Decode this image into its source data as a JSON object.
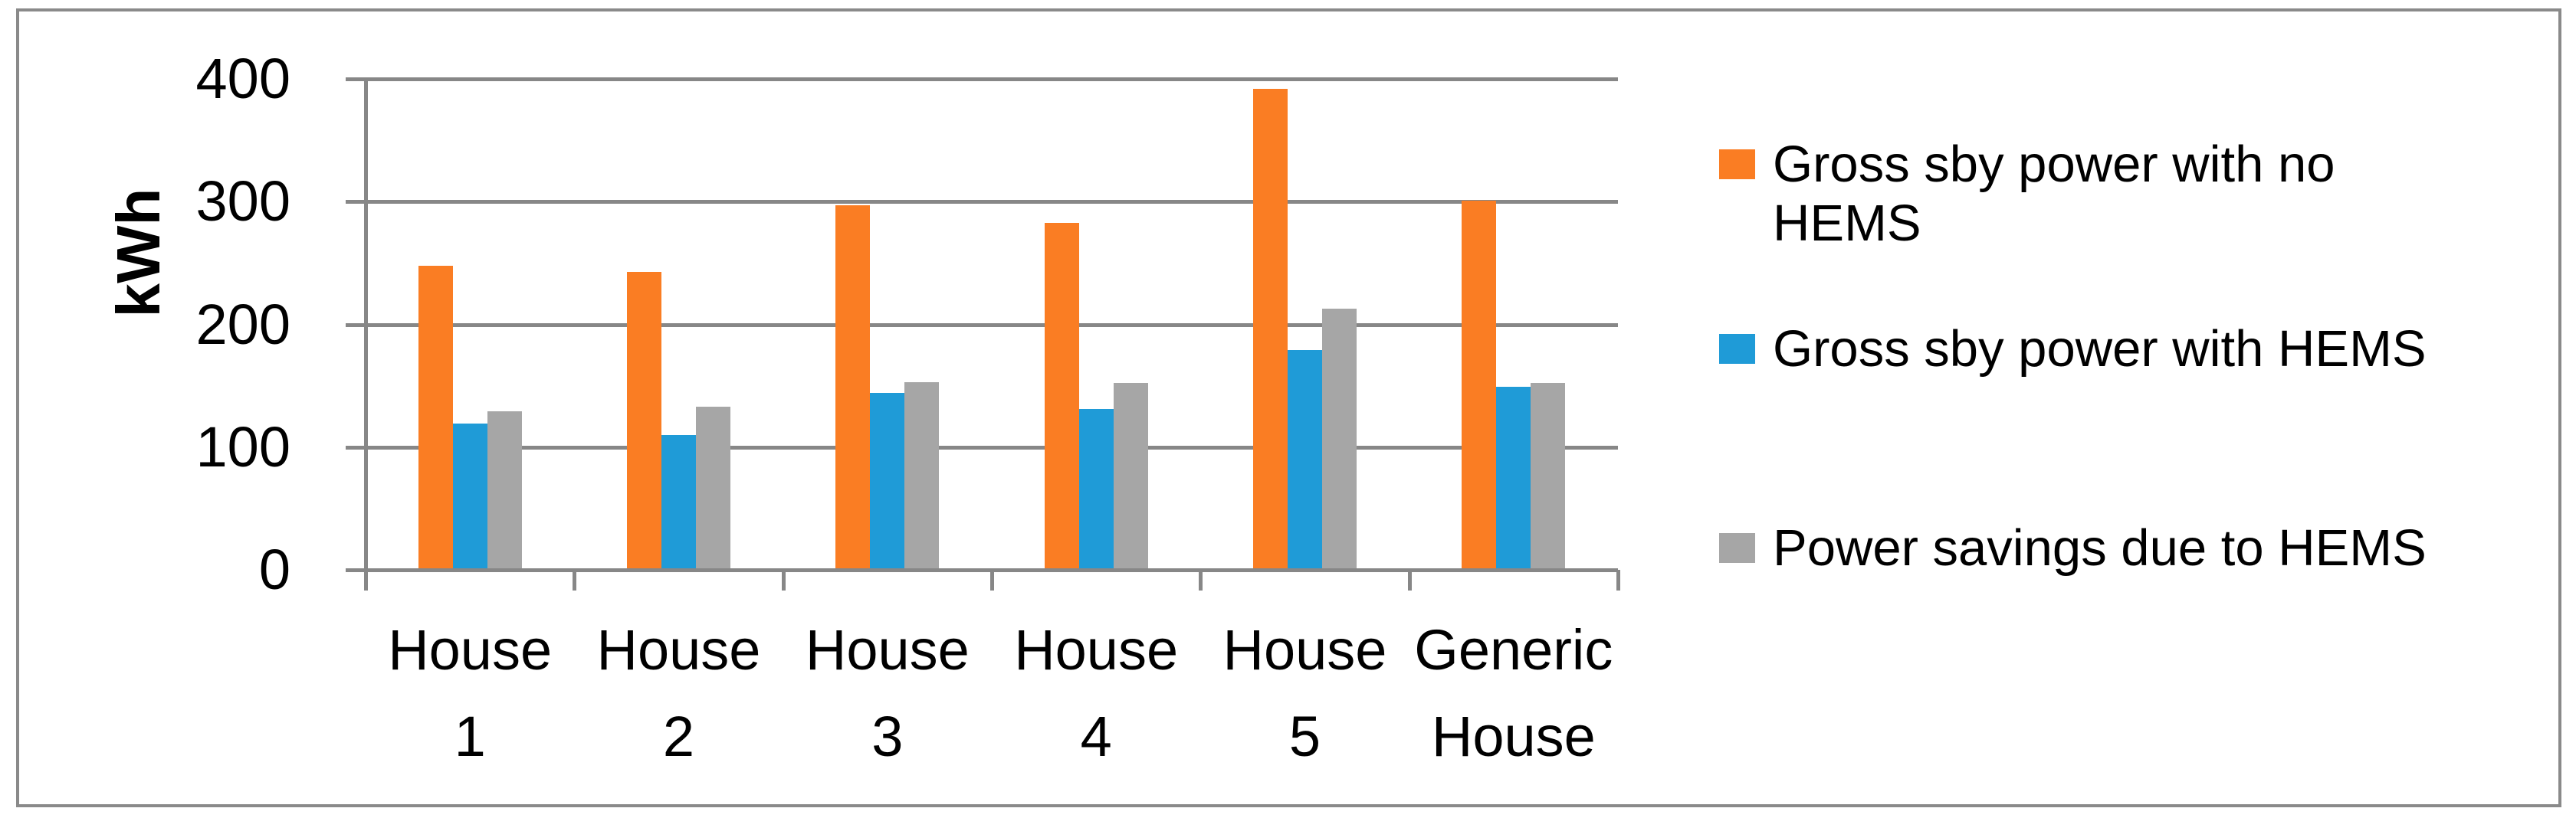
{
  "chart_data": {
    "type": "bar",
    "title": "",
    "ylabel": "kWh",
    "ylim": [
      0,
      400
    ],
    "yticks": [
      400,
      300,
      200,
      100,
      0
    ],
    "grid": true,
    "legend_position": "right",
    "categories": [
      {
        "line1": "House",
        "line2": "1"
      },
      {
        "line1": "House",
        "line2": "2"
      },
      {
        "line1": "House",
        "line2": "3"
      },
      {
        "line1": "House",
        "line2": "4"
      },
      {
        "line1": "House",
        "line2": "5"
      },
      {
        "line1": "Generic",
        "line2": "House"
      }
    ],
    "series": [
      {
        "name": "Gross sby power with no HEMS",
        "legend_lines": [
          "Gross sby power with no",
          "HEMS"
        ],
        "color": "#FA7D23",
        "values": [
          248,
          243,
          297,
          283,
          392,
          301
        ]
      },
      {
        "name": "Gross sby power with HEMS",
        "legend_lines": [
          "Gross sby power with HEMS"
        ],
        "color": "#1F9BD7",
        "values": [
          119,
          110,
          144,
          131,
          179,
          149
        ]
      },
      {
        "name": "Power savings due to HEMS",
        "legend_lines": [
          "Power savings due to HEMS"
        ],
        "color": "#A6A6A6",
        "values": [
          129,
          133,
          153,
          152,
          213,
          152
        ]
      }
    ]
  },
  "colors": {
    "gridline": "#878787",
    "border": "#8A8A8A",
    "text": "#000000"
  }
}
